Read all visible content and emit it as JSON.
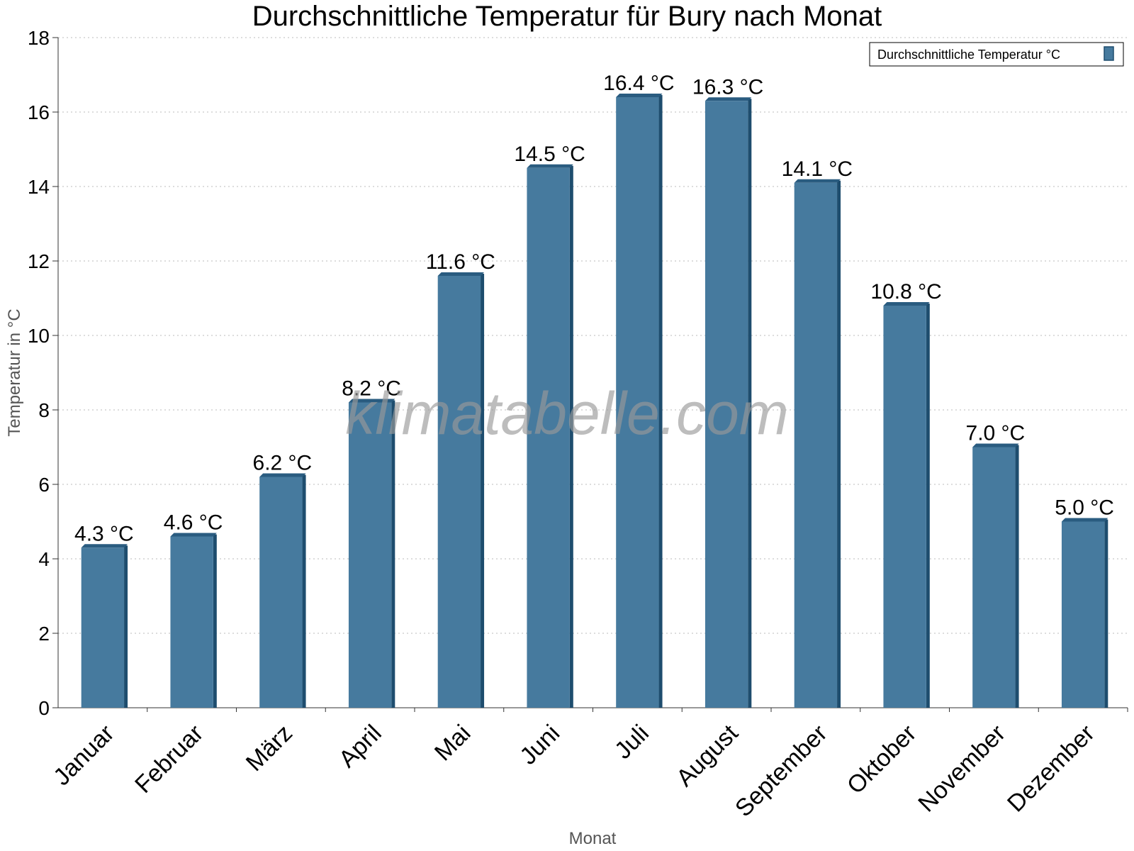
{
  "watermark": "klimatabelle.com",
  "colors": {
    "bar": "#467a9e",
    "bar_side": "#1e4d6e",
    "bar_top": "#2a5c80",
    "grid": "#bbbbbb",
    "axis": "#333333"
  },
  "chart_data": {
    "type": "bar",
    "title": "Durchschnittliche Temperatur für Bury nach Monat",
    "xlabel": "Monat",
    "ylabel": "Temperatur in °C",
    "ylim": [
      0,
      18
    ],
    "yticks": [
      0,
      2,
      4,
      6,
      8,
      10,
      12,
      14,
      16,
      18
    ],
    "grid": true,
    "legend_position": "top-right",
    "categories": [
      "Januar",
      "Februar",
      "März",
      "April",
      "Mai",
      "Juni",
      "Juli",
      "August",
      "September",
      "Oktober",
      "November",
      "Dezember"
    ],
    "series": [
      {
        "name": "Durchschnittliche Temperatur °C",
        "values": [
          4.3,
          4.6,
          6.2,
          8.2,
          11.6,
          14.5,
          16.4,
          16.3,
          14.1,
          10.8,
          7.0,
          5.0
        ],
        "labels": [
          "4.3 °C",
          "4.6 °C",
          "6.2 °C",
          "8.2 °C",
          "11.6 °C",
          "14.5 °C",
          "16.4 °C",
          "16.3 °C",
          "14.1 °C",
          "10.8 °C",
          "7.0 °C",
          "5.0 °C"
        ]
      }
    ]
  }
}
